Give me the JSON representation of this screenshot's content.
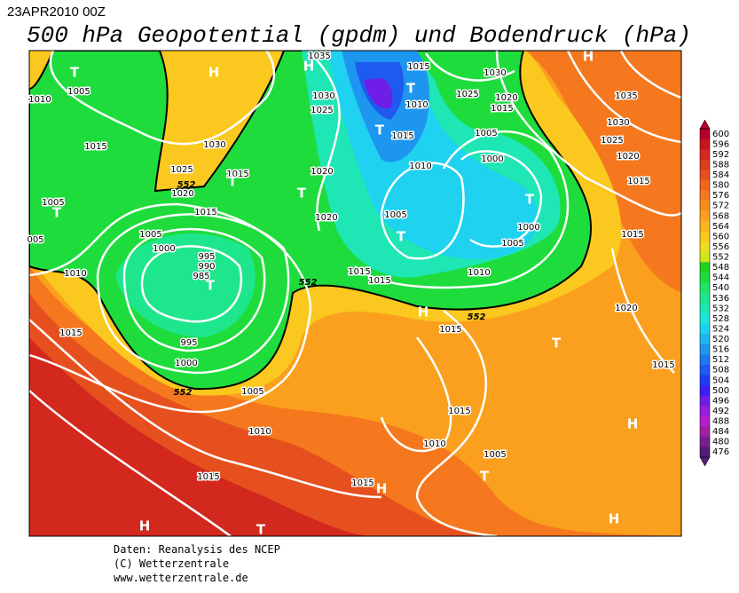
{
  "header": {
    "date": "23APR2010 00Z",
    "title": "500 hPa Geopotential (gpdm) und Bodendruck (hPa)"
  },
  "footer": [
    "Daten: Reanalysis des NCEP",
    "(C) Wetterzentrale",
    "www.wetterzentrale.de"
  ],
  "colorbar": {
    "ticks": [
      600,
      596,
      592,
      588,
      584,
      580,
      576,
      572,
      568,
      564,
      560,
      556,
      552,
      548,
      544,
      540,
      536,
      532,
      528,
      524,
      520,
      516,
      512,
      508,
      504,
      500,
      496,
      492,
      488,
      484,
      480,
      476
    ],
    "colors": [
      "#b4002d",
      "#c8141e",
      "#d2281e",
      "#dc3c1e",
      "#e6501e",
      "#f0641e",
      "#f5781e",
      "#fa8c1e",
      "#faa01e",
      "#fab41e",
      "#fac81e",
      "#f0dc1e",
      "#d2e61e",
      "#1ed21e",
      "#1edc3c",
      "#1ee664",
      "#1ee68c",
      "#1ee6b4",
      "#1ee6dc",
      "#1ed2f0",
      "#1eb4f0",
      "#1e96f0",
      "#1e78f0",
      "#1e5af0",
      "#1e3cf0",
      "#3c1ef0",
      "#6e1ee6",
      "#961edc",
      "#b41ec8",
      "#a01ea0",
      "#781e8c",
      "#501e78"
    ]
  },
  "map": {
    "isobar_labels": [
      "1005",
      "1010",
      "1015",
      "1025",
      "1020",
      "1030",
      "1015",
      "1015",
      "1005",
      "005",
      "1005",
      "1000",
      "995",
      "990",
      "985",
      "1010",
      "1015",
      "995",
      "1000",
      "1005",
      "1010",
      "1015",
      "1035",
      "1030",
      "1025",
      "1020",
      "1020",
      "1015",
      "1010",
      "1015",
      "1010",
      "1005",
      "1015",
      "1015",
      "1010",
      "1005",
      "1000",
      "1000",
      "1005",
      "1025",
      "1020",
      "1015",
      "1030",
      "1035",
      "1030",
      "1025",
      "1020",
      "1015",
      "1015",
      "1020",
      "1015",
      "1015",
      "1015",
      "1010",
      "1005",
      "1015"
    ],
    "centers": [
      "T",
      "H",
      "H",
      "T",
      "T",
      "T",
      "T",
      "T",
      "T",
      "T",
      "T",
      "H",
      "T",
      "H",
      "H",
      "T",
      "H",
      "H",
      "T",
      "H"
    ],
    "contour_labels": [
      "552",
      "552",
      "552",
      "552"
    ]
  }
}
